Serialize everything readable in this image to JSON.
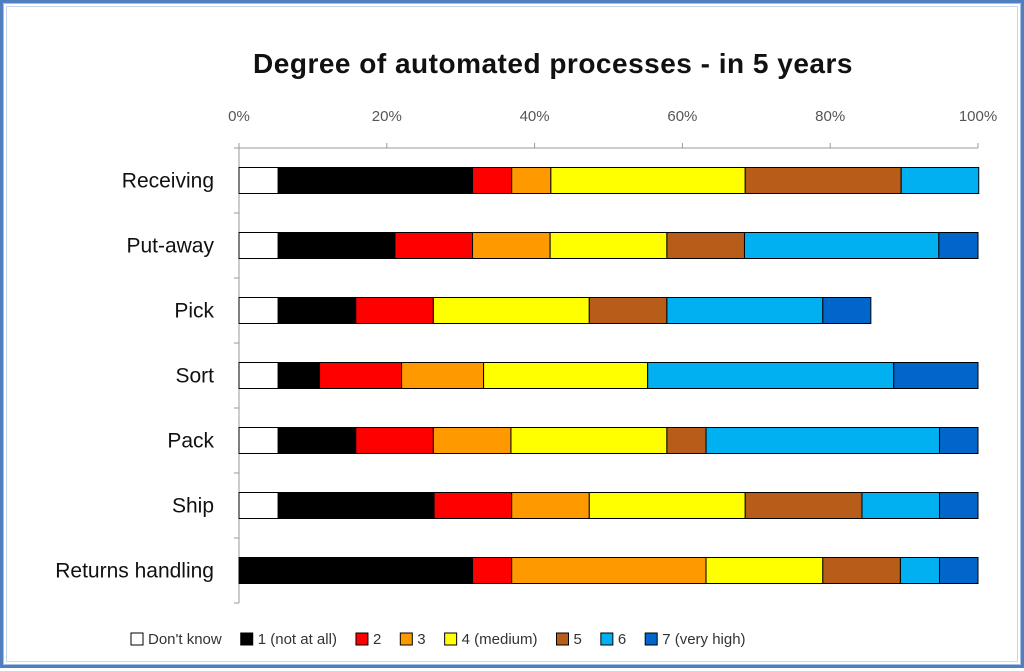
{
  "chart_data": {
    "type": "bar",
    "orientation": "horizontal",
    "stacked": "percent",
    "title": "Degree of automated processes - in 5 years",
    "xlabel": "",
    "ylabel": "",
    "xlim": [
      0,
      100
    ],
    "x_tick_labels": [
      "0%",
      "20%",
      "40%",
      "60%",
      "80%",
      "100%"
    ],
    "x_tick_values": [
      0,
      20,
      40,
      60,
      80,
      100
    ],
    "grid": false,
    "legend_position": "bottom",
    "categories": [
      "Receiving",
      "Put-away",
      "Pick",
      "Sort",
      "Pack",
      "Ship",
      "Returns handling"
    ],
    "series": [
      {
        "name": "Don't know",
        "color": "#ffffff",
        "values": [
          5.3,
          5.3,
          5.3,
          5.3,
          5.3,
          5.3,
          0
        ]
      },
      {
        "name": "1 (not at all)",
        "color": "#000000",
        "values": [
          26.3,
          15.8,
          10.5,
          5.6,
          10.5,
          21.1,
          31.6
        ]
      },
      {
        "name": "2",
        "color": "#ff0000",
        "values": [
          5.3,
          10.5,
          10.5,
          11.1,
          10.5,
          10.5,
          5.3
        ]
      },
      {
        "name": "3",
        "color": "#ff9900",
        "values": [
          5.3,
          10.5,
          0,
          11.1,
          10.5,
          10.5,
          26.3
        ]
      },
      {
        "name": "4 (medium)",
        "color": "#ffff00",
        "values": [
          26.3,
          15.8,
          21.1,
          22.2,
          21.1,
          21.1,
          15.8
        ]
      },
      {
        "name": "5",
        "color": "#b85c1a",
        "values": [
          21.1,
          10.5,
          10.5,
          0,
          5.3,
          15.8,
          10.5
        ]
      },
      {
        "name": "6",
        "color": "#00b0f0",
        "values": [
          10.5,
          26.3,
          21.1,
          33.3,
          31.6,
          10.5,
          5.3
        ]
      },
      {
        "name": "7 (very high)",
        "color": "#0066cc",
        "values": [
          0,
          5.3,
          6.5,
          11.4,
          5.2,
          5.2,
          5.2
        ]
      }
    ]
  }
}
